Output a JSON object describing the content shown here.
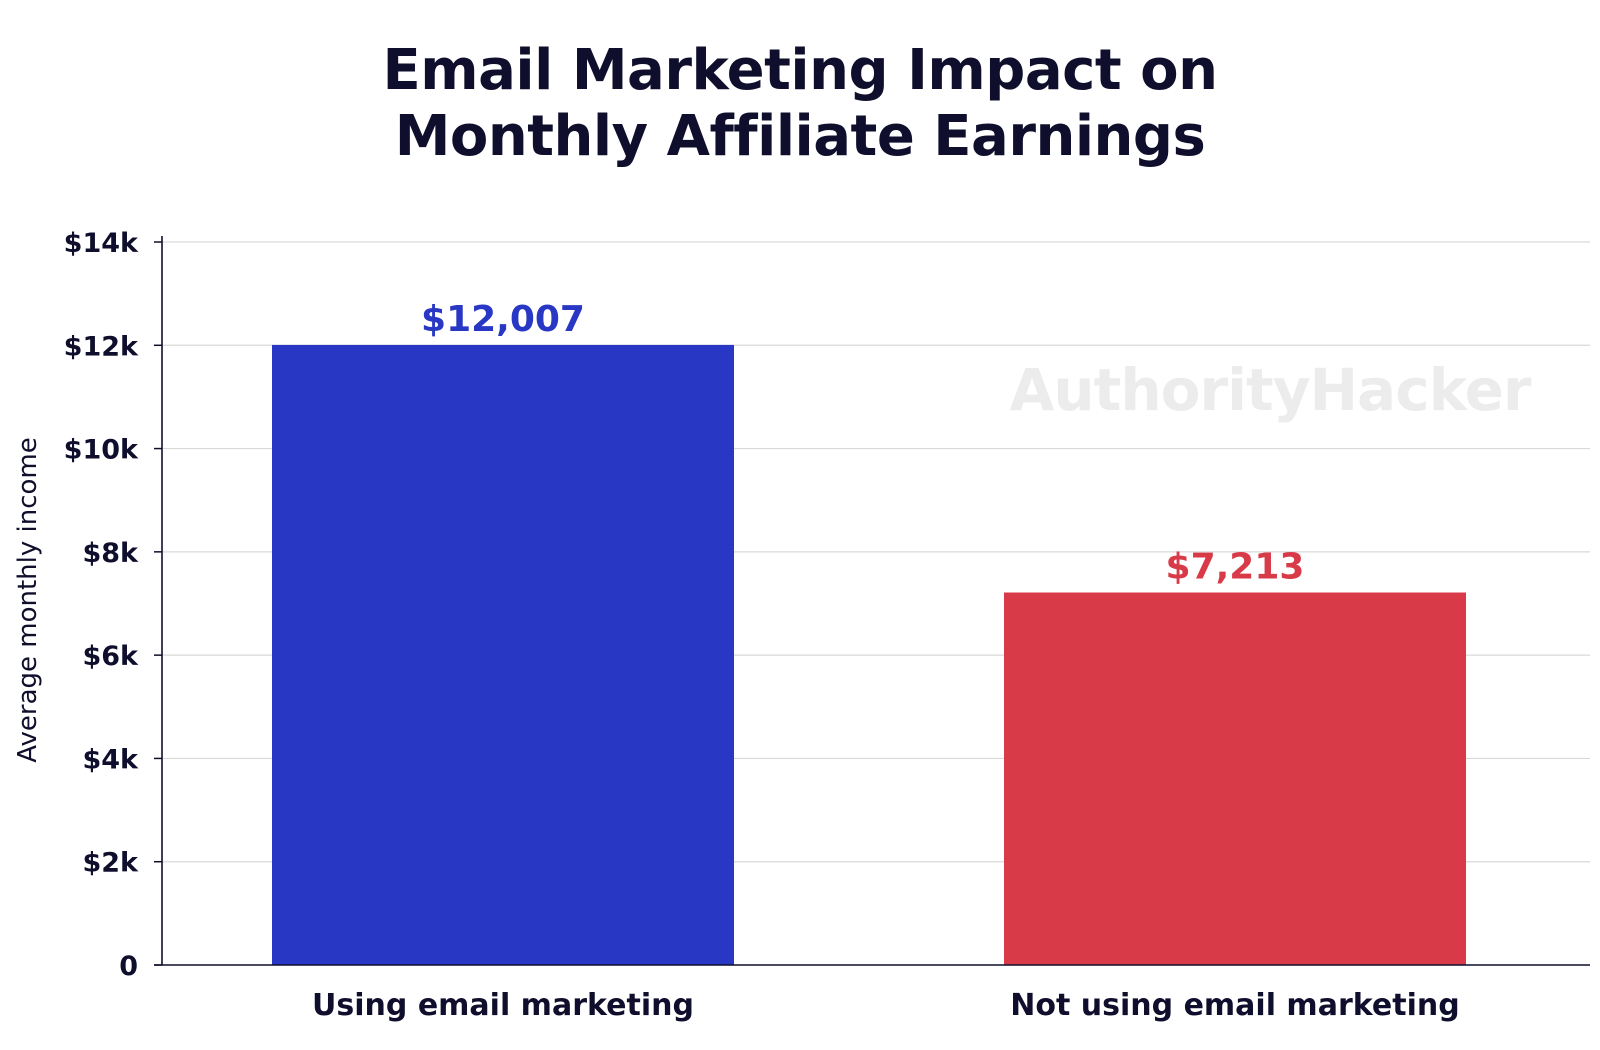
{
  "chart_data": {
    "type": "bar",
    "title_lines": [
      "Email Marketing Impact on",
      "Monthly Affiliate Earnings"
    ],
    "ylabel": "Average monthly income",
    "xlabel": "",
    "categories": [
      "Using email marketing",
      "Not using email marketing"
    ],
    "values": [
      12007,
      7213
    ],
    "data_labels": [
      "$12,007",
      "$7,213"
    ],
    "colors": [
      "#2837c4",
      "#d93a48"
    ],
    "ylim": [
      0,
      14000
    ],
    "yticks": [
      0,
      2000,
      4000,
      6000,
      8000,
      10000,
      12000,
      14000
    ],
    "ytick_labels": [
      "0",
      "$2k",
      "$4k",
      "$6k",
      "$8k",
      "$10k",
      "$12k",
      "$14k"
    ],
    "grid": true,
    "legend": "none",
    "watermark": "AuthorityHacker"
  }
}
